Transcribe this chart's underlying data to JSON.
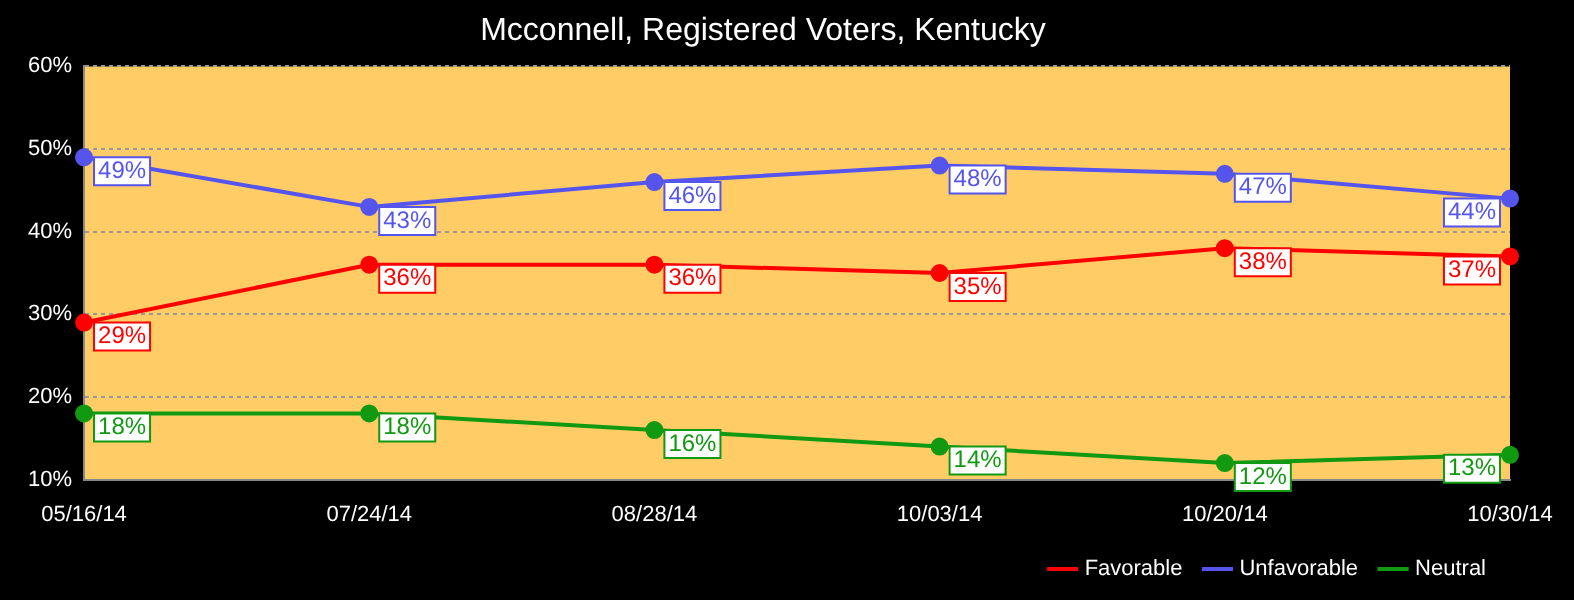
{
  "chart_data": {
    "type": "line",
    "title": "Mcconnell, Registered Voters, Kentucky",
    "categories": [
      "05/16/14",
      "07/24/14",
      "08/28/14",
      "10/03/14",
      "10/20/14",
      "10/30/14"
    ],
    "series": [
      {
        "name": "Favorable",
        "color": "#ff0000",
        "values": [
          29,
          36,
          36,
          35,
          38,
          37
        ],
        "value_labels": [
          "29%",
          "36%",
          "36%",
          "35%",
          "38%",
          "37%"
        ]
      },
      {
        "name": "Unfavorable",
        "color": "#5555ee",
        "values": [
          49,
          43,
          46,
          48,
          47,
          44
        ],
        "value_labels": [
          "49%",
          "43%",
          "46%",
          "48%",
          "47%",
          "44%"
        ]
      },
      {
        "name": "Neutral",
        "color": "#119911",
        "values": [
          18,
          18,
          16,
          14,
          12,
          13
        ],
        "value_labels": [
          "18%",
          "18%",
          "16%",
          "14%",
          "12%",
          "13%"
        ]
      }
    ],
    "ylim": [
      10,
      60
    ],
    "yticks": [
      {
        "value": 10,
        "label": "10%"
      },
      {
        "value": 20,
        "label": "20%"
      },
      {
        "value": 30,
        "label": "30%"
      },
      {
        "value": 40,
        "label": "40%"
      },
      {
        "value": 50,
        "label": "50%"
      },
      {
        "value": 60,
        "label": "60%"
      }
    ],
    "grid": "y",
    "legend": "bottom right",
    "marker": "circle",
    "line_style": "solid"
  }
}
